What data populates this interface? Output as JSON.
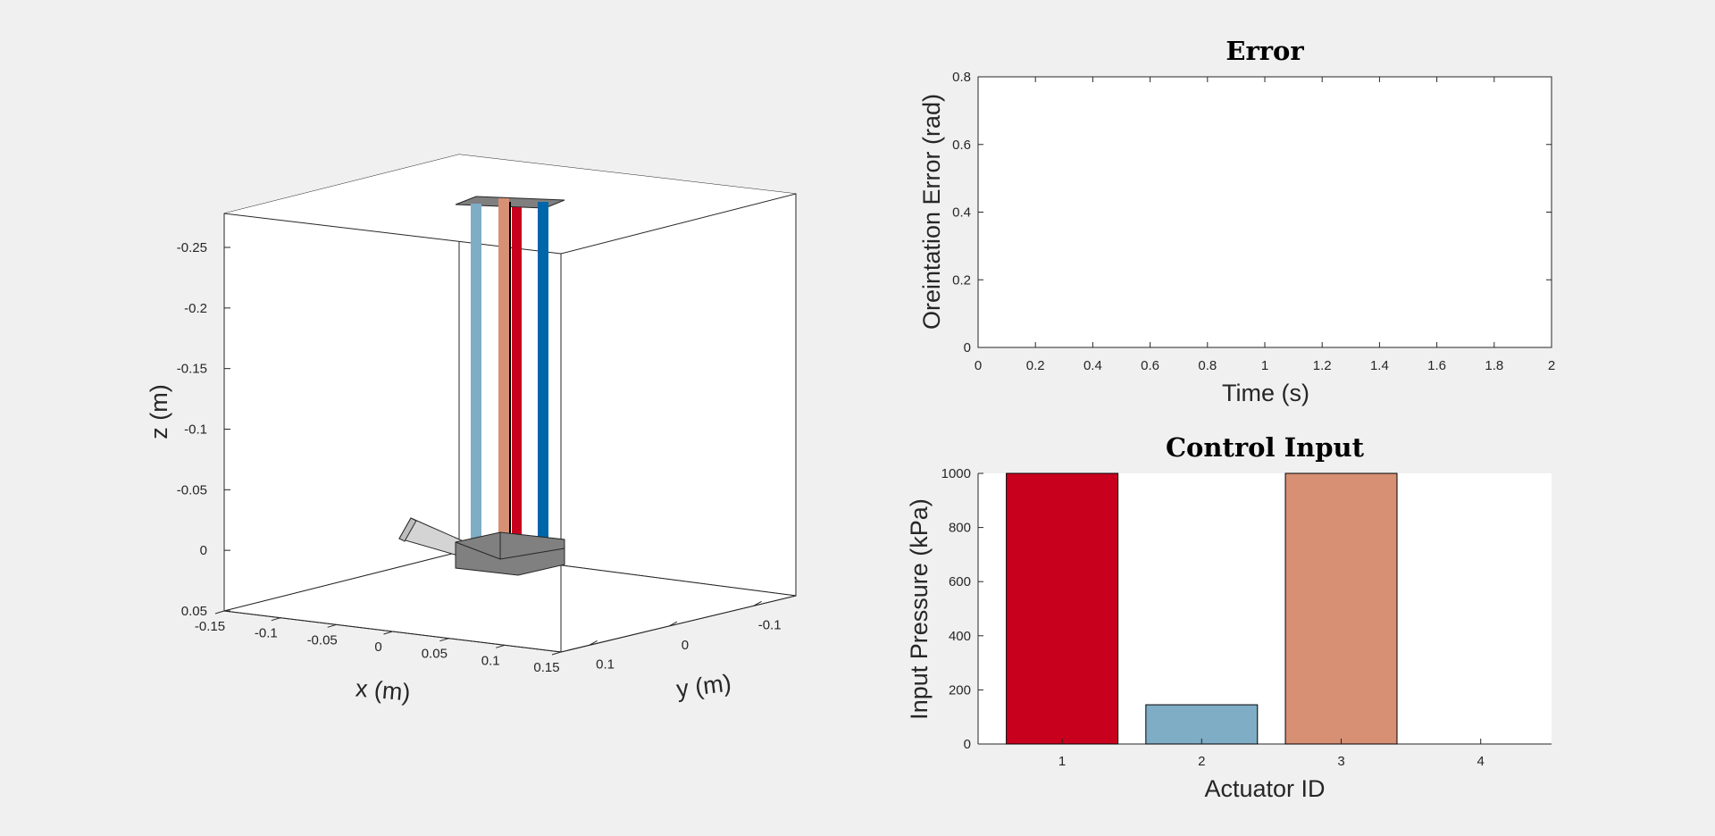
{
  "chart_data": [
    {
      "type": "3d-scene",
      "name": "soft-actuator-view",
      "xlabel": "x (m)",
      "ylabel": "y (m)",
      "zlabel": "z (m)",
      "x_ticks": [
        "-0.15",
        "-0.1",
        "-0.05",
        "0",
        "0.05",
        "0.1",
        "0.15"
      ],
      "y_ticks": [
        "-0.1",
        "0",
        "0.1"
      ],
      "z_ticks": [
        "-0.25",
        "-0.2",
        "-0.15",
        "-0.1",
        "-0.05",
        "0",
        "0.05"
      ],
      "actuator_colors": [
        "#7fadc6",
        "#d79073",
        "#c8001e",
        "#0066aa"
      ]
    },
    {
      "type": "line",
      "title": "Error",
      "xlabel": "Time (s)",
      "ylabel": "Oreintation Error (rad)",
      "xlim": [
        0,
        2
      ],
      "ylim": [
        0,
        0.8
      ],
      "x_ticks": [
        "0",
        "0.2",
        "0.4",
        "0.6",
        "0.8",
        "1",
        "1.2",
        "1.4",
        "1.6",
        "1.8",
        "2"
      ],
      "y_ticks": [
        "0",
        "0.2",
        "0.4",
        "0.6",
        "0.8"
      ],
      "series": []
    },
    {
      "type": "bar",
      "title": "Control Input",
      "xlabel": "Actuator ID",
      "ylabel": "Input Pressure (kPa)",
      "categories": [
        "1",
        "2",
        "3",
        "4"
      ],
      "values": [
        1000,
        145,
        1000,
        0
      ],
      "colors": [
        "#c8001e",
        "#7fadc6",
        "#d79073",
        "#0066aa"
      ],
      "ylim": [
        0,
        1000
      ],
      "y_ticks": [
        "0",
        "200",
        "400",
        "600",
        "800",
        "1000"
      ]
    }
  ]
}
